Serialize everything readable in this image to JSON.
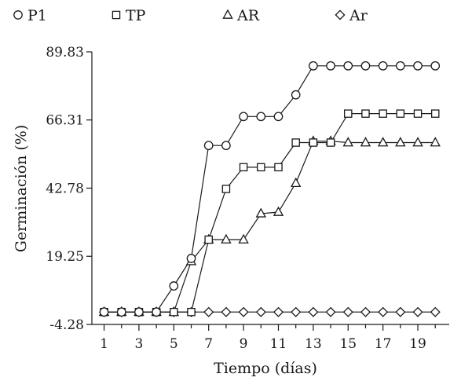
{
  "chart_data": {
    "type": "line",
    "title": "",
    "xlabel": "Tiempo (días)",
    "ylabel": "Germinación (%)",
    "xlim": [
      0.3,
      20.8
    ],
    "ylim": [
      -4.28,
      89.83
    ],
    "x_ticks": [
      1,
      3,
      5,
      7,
      9,
      11,
      13,
      15,
      17,
      19
    ],
    "x_tick_labels": [
      "1",
      "3",
      "5",
      "7",
      "9",
      "11",
      "13",
      "15",
      "17",
      "19"
    ],
    "y_ticks": [
      -4.28,
      19.25,
      42.78,
      66.31,
      89.83
    ],
    "y_tick_labels": [
      "-4.28",
      "19.25",
      "42.78",
      "66.31",
      "89.83"
    ],
    "grid": false,
    "legend_position": "top",
    "x": [
      1,
      2,
      3,
      4,
      5,
      6,
      7,
      8,
      9,
      10,
      11,
      12,
      13,
      14,
      15,
      16,
      17,
      18,
      19,
      20
    ],
    "series": [
      {
        "name": "P1",
        "marker": "circle",
        "values": [
          0,
          0,
          0,
          0,
          9,
          18.5,
          57.5,
          57.5,
          67.5,
          67.5,
          67.5,
          75,
          85,
          85,
          85,
          85,
          85,
          85,
          85,
          85
        ]
      },
      {
        "name": "TP",
        "marker": "square",
        "values": [
          0,
          0,
          0,
          0,
          0,
          0,
          25,
          42.5,
          50,
          50,
          50,
          58.5,
          58.5,
          58.5,
          68.5,
          68.5,
          68.5,
          68.5,
          68.5,
          68.5
        ]
      },
      {
        "name": "AR",
        "marker": "triangle",
        "values": [
          0,
          0,
          0,
          0,
          0,
          17.5,
          25,
          25,
          25,
          34,
          34.5,
          44.5,
          59,
          59,
          58.5,
          58.5,
          58.5,
          58.5,
          58.5,
          58.5
        ]
      },
      {
        "name": "Ar",
        "marker": "diamond",
        "values": [
          0,
          0,
          0,
          0,
          0,
          0,
          0,
          0,
          0,
          0,
          0,
          0,
          0,
          0,
          0,
          0,
          0,
          0,
          0,
          0
        ]
      }
    ]
  },
  "colors": {
    "ink": "#1a1a1a",
    "marker_fill": "#ffffff"
  }
}
